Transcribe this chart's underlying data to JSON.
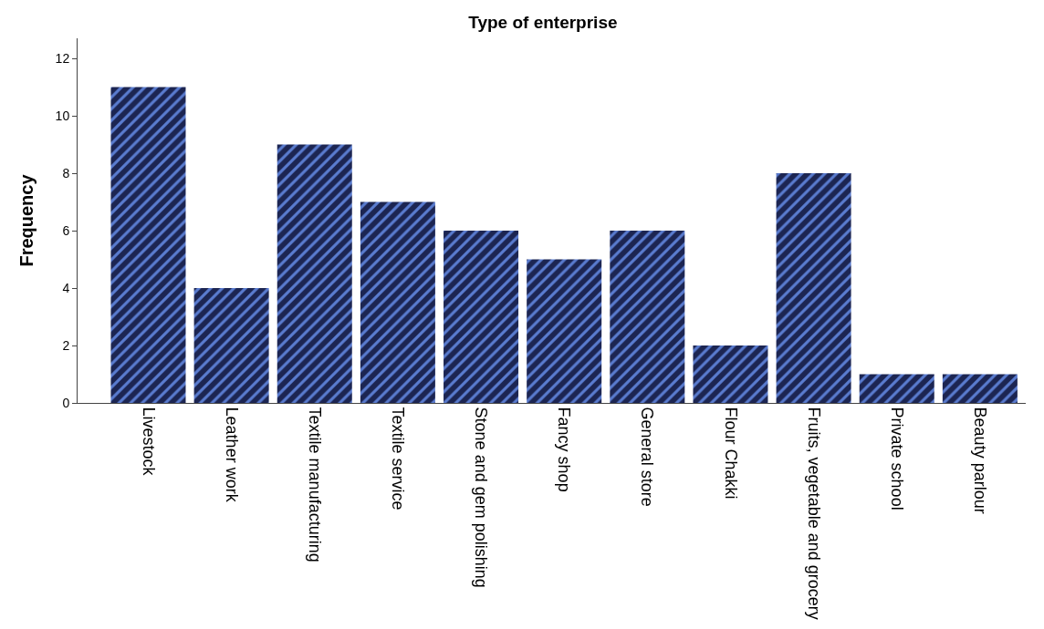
{
  "chart_data": {
    "type": "bar",
    "title": "Type of enterprise",
    "ylabel": "Frequency",
    "categories": [
      "Livestock",
      "Leather work",
      "Textile manufacturing",
      "Textile service",
      "Stone and gem polishing",
      "Fancy shop",
      "General store",
      "Flour Chakki",
      "Fruits, vegetable and grocery",
      "Private school",
      "Beauty parlour"
    ],
    "values": [
      11,
      4,
      9,
      7,
      6,
      5,
      6,
      2,
      8,
      1,
      1
    ],
    "color": "#1c2552",
    "ylim": [
      0,
      12.7
    ],
    "yticks": [
      0,
      2,
      4,
      6,
      8,
      10,
      12
    ],
    "grid": false
  }
}
